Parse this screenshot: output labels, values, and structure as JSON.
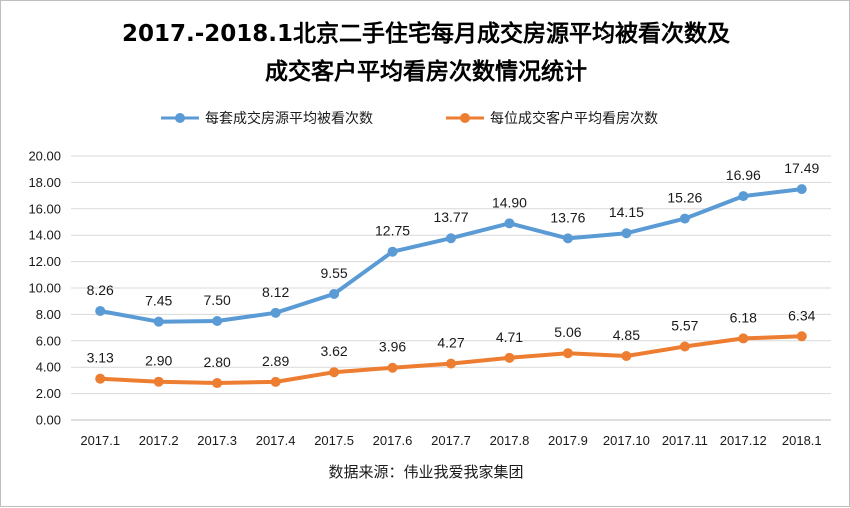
{
  "chart_data": {
    "type": "line",
    "title_lines": [
      "2017.-2018.1北京二手住宅每月成交房源平均被看次数及",
      "成交客户平均看房次数情况统计"
    ],
    "categories": [
      "2017.1",
      "2017.2",
      "2017.3",
      "2017.4",
      "2017.5",
      "2017.6",
      "2017.7",
      "2017.8",
      "2017.9",
      "2017.10",
      "2017.11",
      "2017.12",
      "2018.1"
    ],
    "y_ticks": [
      "0.00",
      "2.00",
      "4.00",
      "6.00",
      "8.00",
      "10.00",
      "12.00",
      "14.00",
      "16.00",
      "18.00",
      "20.00"
    ],
    "ylim": [
      0,
      20
    ],
    "grid": true,
    "legend_position": "top",
    "source": "数据来源：伟业我爱我家集团",
    "series": [
      {
        "name": "每套成交房源平均被看次数",
        "color": "#5b9bd5",
        "values": [
          8.26,
          7.45,
          7.5,
          8.12,
          9.55,
          12.75,
          13.77,
          14.9,
          13.76,
          14.15,
          15.26,
          16.96,
          17.49
        ],
        "labels": [
          "8.26",
          "7.45",
          "7.50",
          "8.12",
          "9.55",
          "12.75",
          "13.77",
          "14.90",
          "13.76",
          "14.15",
          "15.26",
          "16.96",
          "17.49"
        ]
      },
      {
        "name": "每位成交客户平均看房次数",
        "color": "#ed7d31",
        "values": [
          3.13,
          2.9,
          2.8,
          2.89,
          3.62,
          3.96,
          4.27,
          4.71,
          5.06,
          4.85,
          5.57,
          6.18,
          6.34
        ],
        "labels": [
          "3.13",
          "2.90",
          "2.80",
          "2.89",
          "3.62",
          "3.96",
          "4.27",
          "4.71",
          "5.06",
          "4.85",
          "5.57",
          "6.18",
          "6.34"
        ]
      }
    ]
  }
}
